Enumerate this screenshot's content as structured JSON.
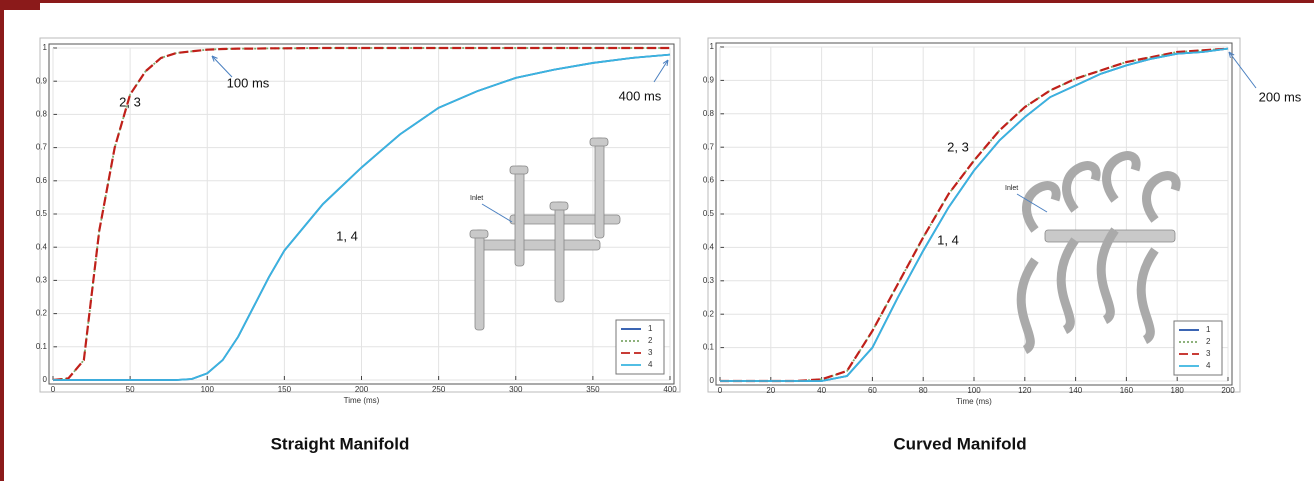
{
  "chart_data": [
    {
      "type": "line",
      "title": "Straight Manifold",
      "xlabel": "Time (ms)",
      "x": [
        0,
        10,
        20,
        30,
        40,
        50,
        60,
        70,
        80,
        90,
        100,
        110,
        120,
        130,
        140,
        150,
        175,
        200,
        225,
        250,
        275,
        300,
        325,
        350,
        375,
        400
      ],
      "series": [
        {
          "name": "1",
          "color": "#1f4fa8",
          "dash": "solid",
          "values": [
            0,
            0,
            0,
            0,
            0,
            0,
            0,
            0,
            0,
            0.003,
            0.02,
            0.06,
            0.13,
            0.22,
            0.31,
            0.39,
            0.53,
            0.64,
            0.74,
            0.82,
            0.87,
            0.91,
            0.935,
            0.955,
            0.97,
            0.98
          ]
        },
        {
          "name": "2",
          "color": "#7fa86a",
          "dash": "dotted",
          "values": [
            0,
            0.005,
            0.06,
            0.45,
            0.7,
            0.86,
            0.93,
            0.97,
            0.985,
            0.99,
            0.995,
            0.997,
            0.998,
            0.998,
            0.999,
            0.999,
            1,
            1,
            1,
            1,
            1,
            1,
            1,
            1,
            1,
            1
          ]
        },
        {
          "name": "3",
          "color": "#c0201a",
          "dash": "dashed",
          "values": [
            0,
            0.005,
            0.06,
            0.45,
            0.7,
            0.86,
            0.93,
            0.97,
            0.985,
            0.99,
            0.995,
            0.997,
            0.998,
            0.998,
            0.999,
            0.999,
            1,
            1,
            1,
            1,
            1,
            1,
            1,
            1,
            1,
            1
          ]
        },
        {
          "name": "4",
          "color": "#3ab4e0",
          "dash": "solid",
          "values": [
            0,
            0,
            0,
            0,
            0,
            0,
            0,
            0,
            0,
            0.003,
            0.02,
            0.06,
            0.13,
            0.22,
            0.31,
            0.39,
            0.53,
            0.64,
            0.74,
            0.82,
            0.87,
            0.91,
            0.935,
            0.955,
            0.97,
            0.98
          ]
        }
      ],
      "xlim": [
        0,
        400
      ],
      "xticks": [
        0,
        50,
        100,
        150,
        200,
        250,
        300,
        350,
        400
      ],
      "ylim": [
        0,
        1
      ],
      "yticks": [
        0,
        0.1,
        0.2,
        0.3,
        0.4,
        0.5,
        0.6,
        0.7,
        0.8,
        0.9,
        1
      ],
      "grid": true,
      "legend": "lower right",
      "annotations": [
        "2, 3",
        "100 ms",
        "400 ms",
        "1, 4"
      ],
      "inset_label": "Inlet"
    },
    {
      "type": "line",
      "title": "Curved Manifold",
      "xlabel": "Time (ms)",
      "x": [
        0,
        10,
        20,
        30,
        40,
        50,
        60,
        70,
        80,
        90,
        100,
        110,
        120,
        130,
        140,
        150,
        160,
        170,
        180,
        190,
        200
      ],
      "series": [
        {
          "name": "1",
          "color": "#1f4fa8",
          "dash": "solid",
          "values": [
            0,
            0,
            0,
            0,
            0,
            0.015,
            0.1,
            0.25,
            0.39,
            0.52,
            0.63,
            0.72,
            0.79,
            0.85,
            0.885,
            0.92,
            0.945,
            0.965,
            0.98,
            0.985,
            0.995
          ]
        },
        {
          "name": "2",
          "color": "#7fa86a",
          "dash": "dotted",
          "values": [
            0,
            0,
            0,
            0,
            0.005,
            0.03,
            0.15,
            0.29,
            0.43,
            0.56,
            0.66,
            0.75,
            0.82,
            0.87,
            0.905,
            0.93,
            0.955,
            0.97,
            0.985,
            0.99,
            0.995
          ]
        },
        {
          "name": "3",
          "color": "#c0201a",
          "dash": "dashed",
          "values": [
            0,
            0,
            0,
            0,
            0.005,
            0.03,
            0.15,
            0.29,
            0.43,
            0.56,
            0.66,
            0.75,
            0.82,
            0.87,
            0.905,
            0.93,
            0.955,
            0.97,
            0.985,
            0.99,
            0.995
          ]
        },
        {
          "name": "4",
          "color": "#3ab4e0",
          "dash": "solid",
          "values": [
            0,
            0,
            0,
            0,
            0,
            0.015,
            0.1,
            0.25,
            0.39,
            0.52,
            0.63,
            0.72,
            0.79,
            0.85,
            0.885,
            0.92,
            0.945,
            0.965,
            0.98,
            0.985,
            0.995
          ]
        }
      ],
      "xlim": [
        0,
        200
      ],
      "xticks": [
        0,
        20,
        40,
        60,
        80,
        100,
        120,
        140,
        160,
        180,
        200
      ],
      "ylim": [
        0,
        1
      ],
      "yticks": [
        0,
        0.1,
        0.2,
        0.3,
        0.4,
        0.5,
        0.6,
        0.7,
        0.8,
        0.9,
        1
      ],
      "grid": true,
      "legend": "lower right",
      "annotations": [
        "2, 3",
        "1, 4",
        "200 ms"
      ],
      "inset_label": "Inlet"
    }
  ]
}
